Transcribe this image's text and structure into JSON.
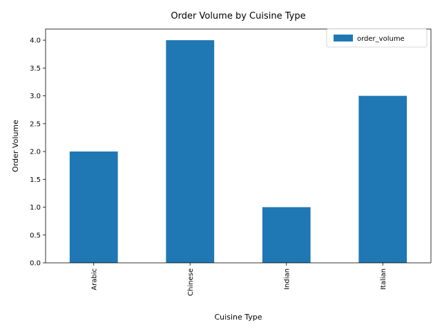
{
  "chart_data": {
    "type": "bar",
    "title": "Order Volume by Cuisine Type",
    "xlabel": "Cuisine Type",
    "ylabel": "Order Volume",
    "categories": [
      "Arabic",
      "Chinese",
      "Indian",
      "Italian"
    ],
    "series": [
      {
        "name": "order_volume",
        "values": [
          2,
          4,
          1,
          3
        ],
        "color": "#1f77b4"
      }
    ],
    "ylim": [
      0,
      4.2
    ],
    "yticks": [
      "0.0",
      "0.5",
      "1.0",
      "1.5",
      "2.0",
      "2.5",
      "3.0",
      "3.5",
      "4.0"
    ],
    "grid": false,
    "legend_position": "top-right",
    "x_tick_rotation": "vertical"
  }
}
